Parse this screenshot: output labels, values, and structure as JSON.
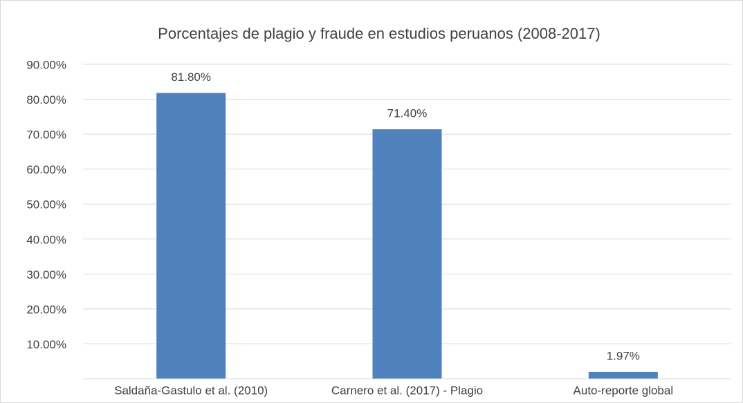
{
  "chart_data": {
    "type": "bar",
    "title": "Porcentajes de plagio y fraude en estudios peruanos (2008-2017)",
    "categories": [
      "Saldaña-Gastulo et al.  (2010)",
      "Carnero et al. (2017) - Plagio",
      "Auto-reporte global"
    ],
    "values": [
      81.8,
      71.4,
      1.97
    ],
    "value_labels": [
      "81.80%",
      "71.40%",
      "1.97%"
    ],
    "color": "#4f81bd",
    "ylim": [
      0,
      90
    ],
    "yticks": [
      {
        "value": 10,
        "label": "10.00%"
      },
      {
        "value": 20,
        "label": "20.00%"
      },
      {
        "value": 30,
        "label": "30.00%"
      },
      {
        "value": 40,
        "label": "40.00%"
      },
      {
        "value": 50,
        "label": "50.00%"
      },
      {
        "value": 60,
        "label": "60.00%"
      },
      {
        "value": 70,
        "label": "70.00%"
      },
      {
        "value": 80,
        "label": "80.00%"
      },
      {
        "value": 90,
        "label": "90.00%"
      }
    ],
    "grid": true
  }
}
